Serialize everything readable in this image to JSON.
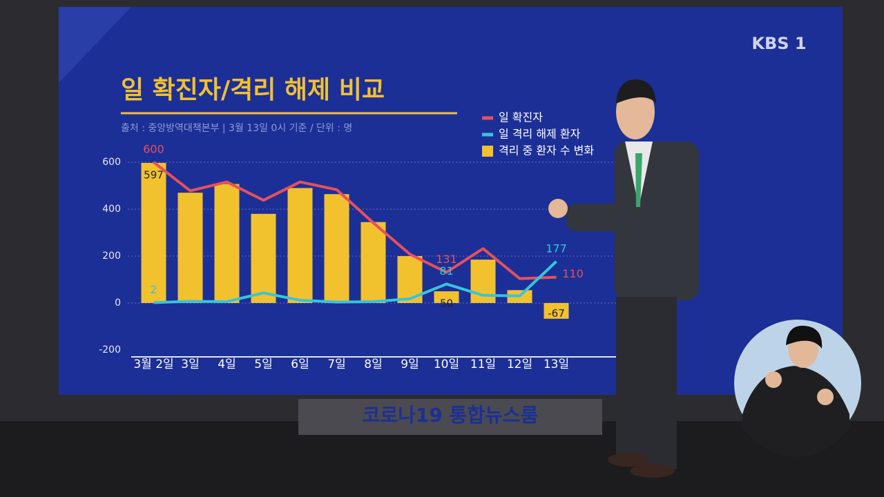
{
  "chart_data": {
    "type": "bar-line",
    "title": "일 확진자/격리 해제 비교",
    "subtitle": "출처 : 중앙방역대책본부 | 3월 13일 0시 기준 / 단위 : 명",
    "categories": [
      "3월 2일",
      "3일",
      "4일",
      "5일",
      "6일",
      "7일",
      "8일",
      "9일",
      "10일",
      "11일",
      "12일",
      "13일"
    ],
    "series": [
      {
        "name": "일 확진자",
        "kind": "line",
        "color": "#e8505b",
        "values": [
          600,
          478,
          516,
          438,
          516,
          483,
          342,
          208,
          131,
          232,
          104,
          110
        ],
        "value_labels": [
          "600",
          null,
          null,
          null,
          null,
          null,
          null,
          null,
          "131",
          null,
          null,
          "110"
        ]
      },
      {
        "name": "일 격리 해제 환자",
        "kind": "line",
        "color": "#37c5d9",
        "values": [
          2,
          7,
          6,
          43,
          12,
          4,
          6,
          18,
          81,
          33,
          30,
          177
        ],
        "value_labels": [
          "2",
          null,
          null,
          null,
          null,
          null,
          null,
          null,
          "81",
          null,
          null,
          "177"
        ]
      },
      {
        "name": "격리 중 환자 수 변화",
        "kind": "bar",
        "color": "#f2c12e",
        "values": [
          597,
          470,
          507,
          380,
          490,
          464,
          345,
          200,
          50,
          185,
          55,
          -67
        ],
        "value_labels": [
          "597",
          null,
          null,
          null,
          null,
          null,
          null,
          null,
          "50",
          null,
          null,
          "-67"
        ]
      }
    ],
    "ylim": [
      -200,
      600
    ],
    "yticks": [
      600,
      400,
      200,
      0,
      -200
    ],
    "grid": true,
    "logo": "KBS 1",
    "banner": "코로나19 통합뉴스룸"
  }
}
